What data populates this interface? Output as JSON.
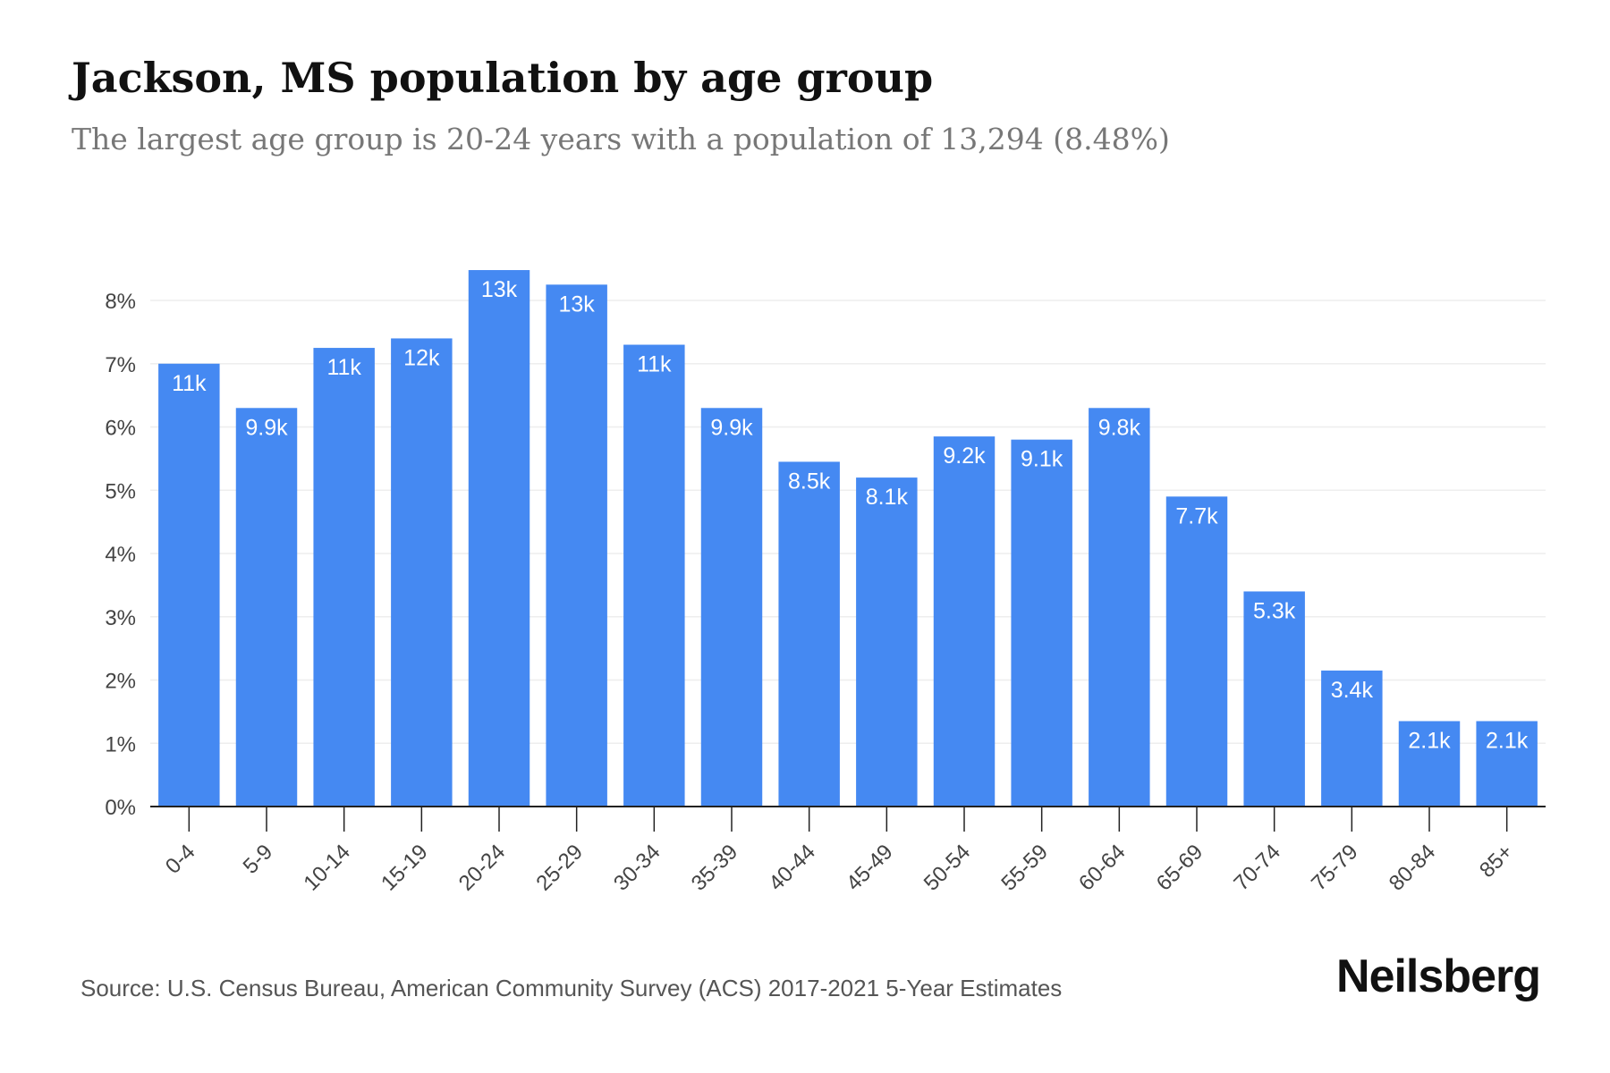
{
  "header": {
    "title": "Jackson, MS population by age group",
    "subtitle": "The largest age group is 20-24 years with a population of 13,294 (8.48%)"
  },
  "footer": {
    "source": "Source: U.S. Census Bureau, American Community Survey (ACS) 2017-2021 5-Year Estimates",
    "brand": "Neilsberg"
  },
  "colors": {
    "bar": "#4589f2",
    "bar_label": "#ffffff",
    "axis": "#222222",
    "grid": "#eeeeee",
    "tick_text": "#444444"
  },
  "chart_data": {
    "type": "bar",
    "title": "",
    "xlabel": "",
    "ylabel": "",
    "ylim": [
      0,
      8.5
    ],
    "yticks": [
      0,
      1,
      2,
      3,
      4,
      5,
      6,
      7,
      8
    ],
    "ytick_labels": [
      "0%",
      "1%",
      "2%",
      "3%",
      "4%",
      "5%",
      "6%",
      "7%",
      "8%"
    ],
    "grid": true,
    "categories": [
      "0-4",
      "5-9",
      "10-14",
      "15-19",
      "20-24",
      "25-29",
      "30-34",
      "35-39",
      "40-44",
      "45-49",
      "50-54",
      "55-59",
      "60-64",
      "65-69",
      "70-74",
      "75-79",
      "80-84",
      "85+"
    ],
    "values": [
      7.0,
      6.3,
      7.25,
      7.4,
      8.48,
      8.25,
      7.3,
      6.3,
      5.45,
      5.2,
      5.85,
      5.8,
      6.3,
      4.9,
      3.4,
      2.15,
      1.35,
      1.35
    ],
    "data_labels": [
      "11k",
      "9.9k",
      "11k",
      "12k",
      "13k",
      "13k",
      "11k",
      "9.9k",
      "8.5k",
      "8.1k",
      "9.2k",
      "9.1k",
      "9.8k",
      "7.7k",
      "5.3k",
      "3.4k",
      "2.1k",
      "2.1k"
    ]
  }
}
